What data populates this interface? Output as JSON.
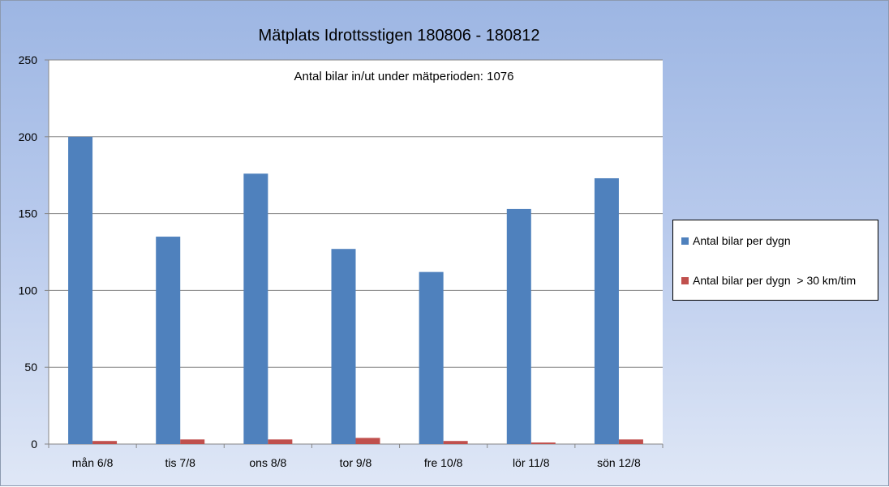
{
  "chart_data": {
    "type": "bar",
    "title": "Mätplats Idrottsstigen 180806 - 180812",
    "annotation": "Antal bilar in/ut under mätperioden: 1076",
    "categories": [
      "mån 6/8",
      "tis 7/8",
      "ons 8/8",
      "tor 9/8",
      "fre 10/8",
      "lör 11/8",
      "sön 12/8"
    ],
    "series": [
      {
        "name": "Antal bilar per dygn",
        "color": "#4f81bd",
        "values": [
          200,
          135,
          176,
          127,
          112,
          153,
          173
        ]
      },
      {
        "name": "Antal bilar per dygn  > 30 km/tim",
        "color": "#c0504d",
        "values": [
          2,
          3,
          3,
          4,
          2,
          1,
          3
        ]
      }
    ],
    "ylim": [
      0,
      250
    ],
    "yticks": [
      0,
      50,
      100,
      150,
      200,
      250
    ],
    "grid": true,
    "legend_position": "right"
  }
}
